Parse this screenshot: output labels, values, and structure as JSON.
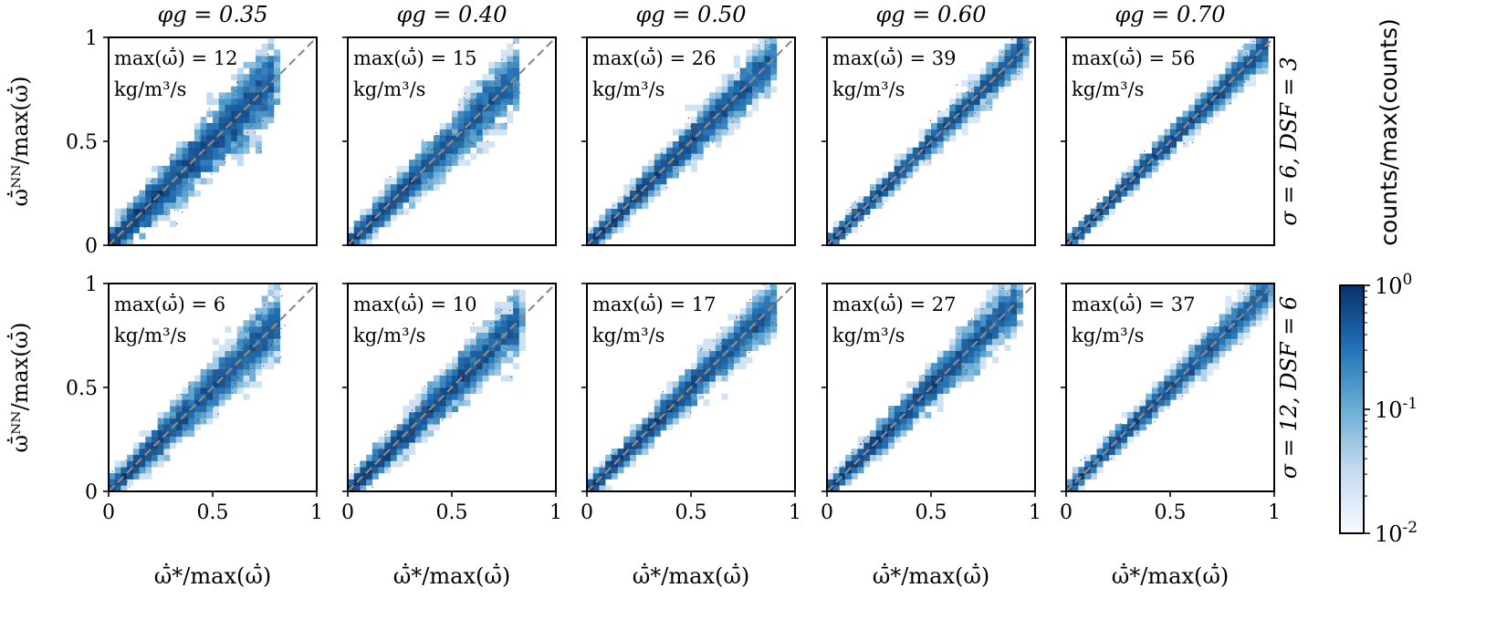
{
  "figure": {
    "colorbar_label": "counts/max(counts)",
    "colorbar_ticks": [
      "10^0",
      "10^-1",
      "10^-2"
    ],
    "colors": {
      "frame": "#000000",
      "diagonal": "#8c8c8c",
      "cmap_low": "#f7fbff",
      "cmap_high": "#08306b",
      "scatter": "#555555"
    }
  },
  "chart_data": {
    "type": "heatmap",
    "description_ref": "2D histograms of predicted vs true normalized reaction rate",
    "xlabel": "ω̄̇*/max(ω̄̇)",
    "ylabel": "ω̄̇ᴺᴺ/max(ω̄̇)",
    "xlim": [
      0,
      1
    ],
    "ylim": [
      0,
      1
    ],
    "x_ticks": [
      "0",
      "0.5",
      "1"
    ],
    "y_ticks": [
      "0",
      "0.5",
      "1"
    ],
    "color_scale": "log",
    "color_range": [
      0.01,
      1
    ],
    "columns": [
      "φg = 0.35",
      "φg = 0.40",
      "φg = 0.50",
      "φg = 0.60",
      "φg = 0.70"
    ],
    "rows": [
      "σ = 6, DSF = 3",
      "σ = 12, DSF = 6"
    ],
    "max_unit": "kg/m³/s",
    "panels": [
      [
        {
          "max_label": "max(ω̄̇) = 12",
          "max_value": 12,
          "spread": 0.075,
          "extent": 0.8
        },
        {
          "max_label": "max(ω̄̇) = 15",
          "max_value": 15,
          "spread": 0.06,
          "extent": 0.82
        },
        {
          "max_label": "max(ω̄̇) = 26",
          "max_value": 26,
          "spread": 0.045,
          "extent": 0.9
        },
        {
          "max_label": "max(ω̄̇) = 39",
          "max_value": 39,
          "spread": 0.03,
          "extent": 0.95
        },
        {
          "max_label": "max(ω̄̇) = 56",
          "max_value": 56,
          "spread": 0.028,
          "extent": 0.97
        }
      ],
      [
        {
          "max_label": "max(ω̄̇) = 6",
          "max_value": 6,
          "spread": 0.06,
          "extent": 0.82
        },
        {
          "max_label": "max(ω̄̇) = 10",
          "max_value": 10,
          "spread": 0.055,
          "extent": 0.83
        },
        {
          "max_label": "max(ω̄̇) = 17",
          "max_value": 17,
          "spread": 0.045,
          "extent": 0.9
        },
        {
          "max_label": "max(ω̄̇) = 27",
          "max_value": 27,
          "spread": 0.045,
          "extent": 0.92
        },
        {
          "max_label": "max(ω̄̇) = 37",
          "max_value": 37,
          "spread": 0.035,
          "extent": 0.98
        }
      ]
    ]
  }
}
